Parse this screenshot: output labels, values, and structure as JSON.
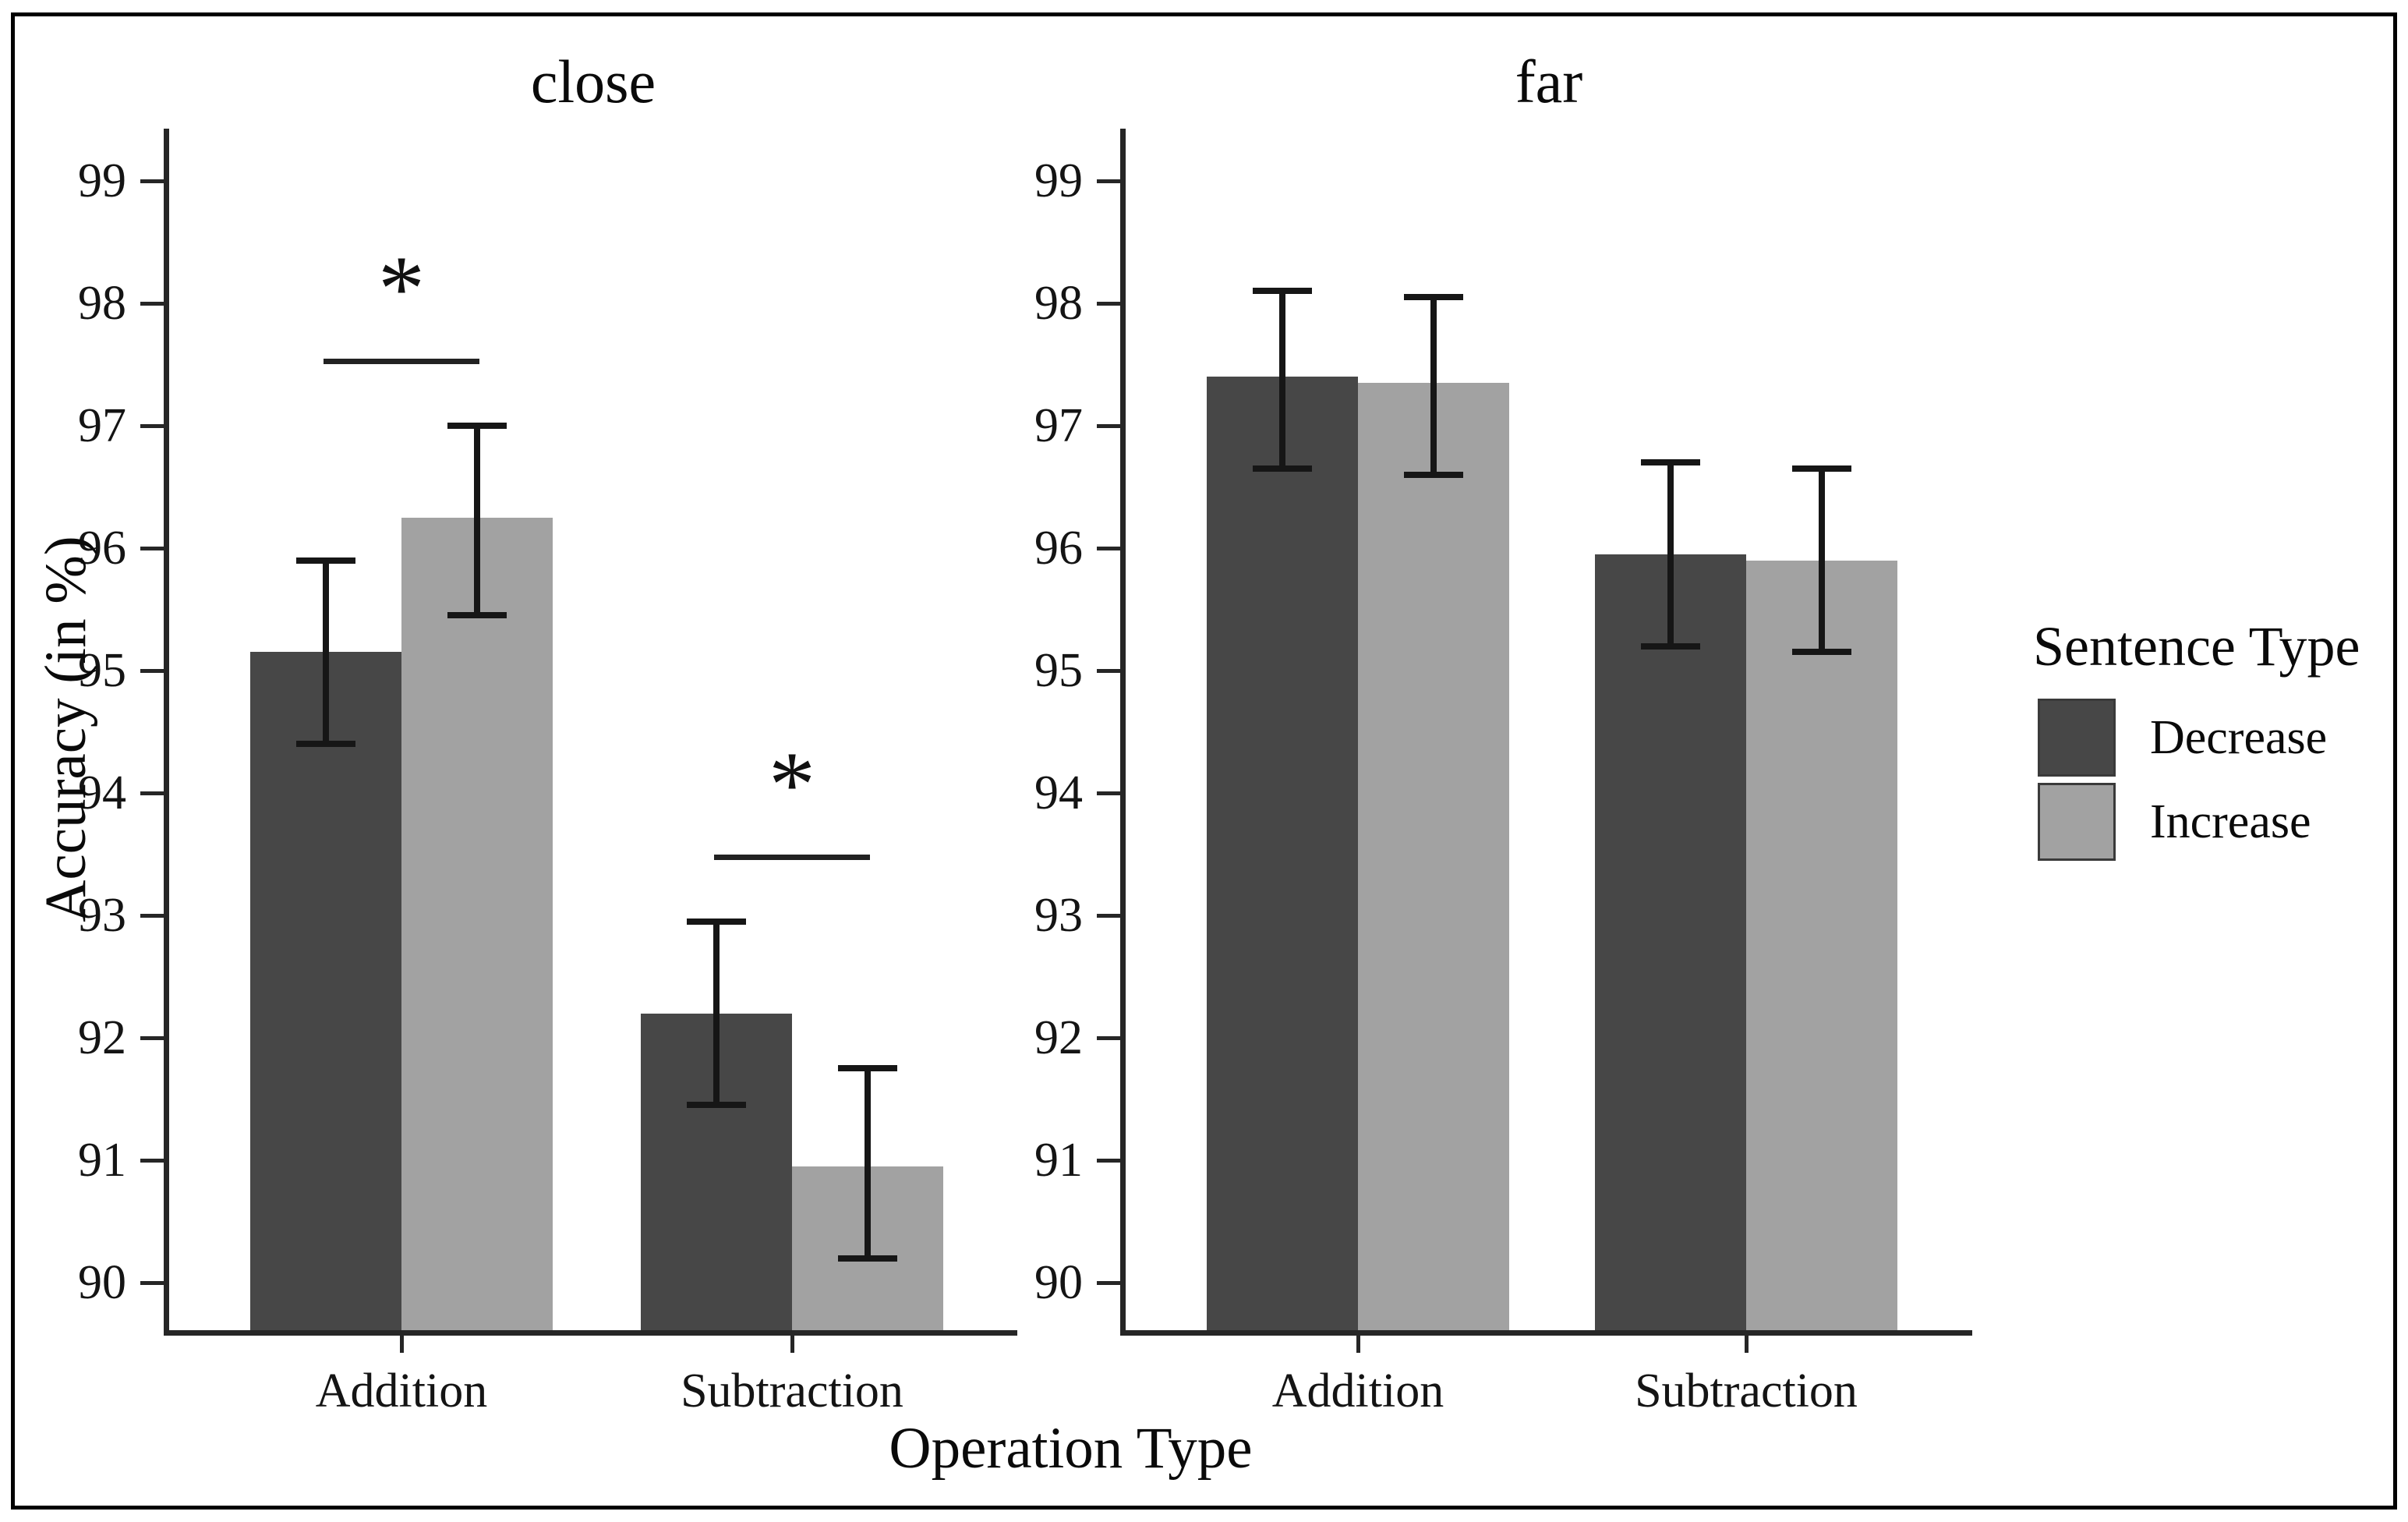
{
  "figure": {
    "y_axis_title": "Accuracy (in %)",
    "x_axis_title": "Operation Type",
    "legend": {
      "title": "Sentence Type",
      "entries": [
        {
          "label": "Decrease",
          "color": "#474747"
        },
        {
          "label": "Increase",
          "color": "#a2a2a2"
        }
      ]
    }
  },
  "chart_data": {
    "type": "bar",
    "title": "",
    "xlabel": "Operation Type",
    "ylabel": "Accuracy (in %)",
    "ylim": [
      89.6,
      99.4
    ],
    "yticks": [
      90,
      91,
      92,
      93,
      94,
      95,
      96,
      97,
      98,
      99
    ],
    "grid": false,
    "legend_position": "right",
    "categories": [
      "Addition",
      "Subtraction"
    ],
    "series_names": [
      "Decrease",
      "Increase"
    ],
    "facets": [
      {
        "name": "close",
        "groups": [
          {
            "category": "Addition",
            "bars": [
              {
                "series": "Decrease",
                "value": 95.15,
                "ci_low": 94.4,
                "ci_high": 95.9
              },
              {
                "series": "Increase",
                "value": 96.25,
                "ci_low": 95.45,
                "ci_high": 97.0
              }
            ]
          },
          {
            "category": "Subtraction",
            "bars": [
              {
                "series": "Decrease",
                "value": 92.2,
                "ci_low": 91.45,
                "ci_high": 92.95
              },
              {
                "series": "Increase",
                "value": 90.95,
                "ci_low": 90.2,
                "ci_high": 91.75
              }
            ]
          }
        ],
        "annotations": [
          {
            "category": "Addition",
            "label": "*",
            "y": 97.55
          },
          {
            "category": "Subtraction",
            "label": "*",
            "y": 93.5
          }
        ]
      },
      {
        "name": "far",
        "groups": [
          {
            "category": "Addition",
            "bars": [
              {
                "series": "Decrease",
                "value": 97.4,
                "ci_low": 96.65,
                "ci_high": 98.1
              },
              {
                "series": "Increase",
                "value": 97.35,
                "ci_low": 96.6,
                "ci_high": 98.05
              }
            ]
          },
          {
            "category": "Subtraction",
            "bars": [
              {
                "series": "Decrease",
                "value": 95.95,
                "ci_low": 95.2,
                "ci_high": 96.7
              },
              {
                "series": "Increase",
                "value": 95.9,
                "ci_low": 95.15,
                "ci_high": 96.65
              }
            ]
          }
        ],
        "annotations": []
      }
    ]
  }
}
